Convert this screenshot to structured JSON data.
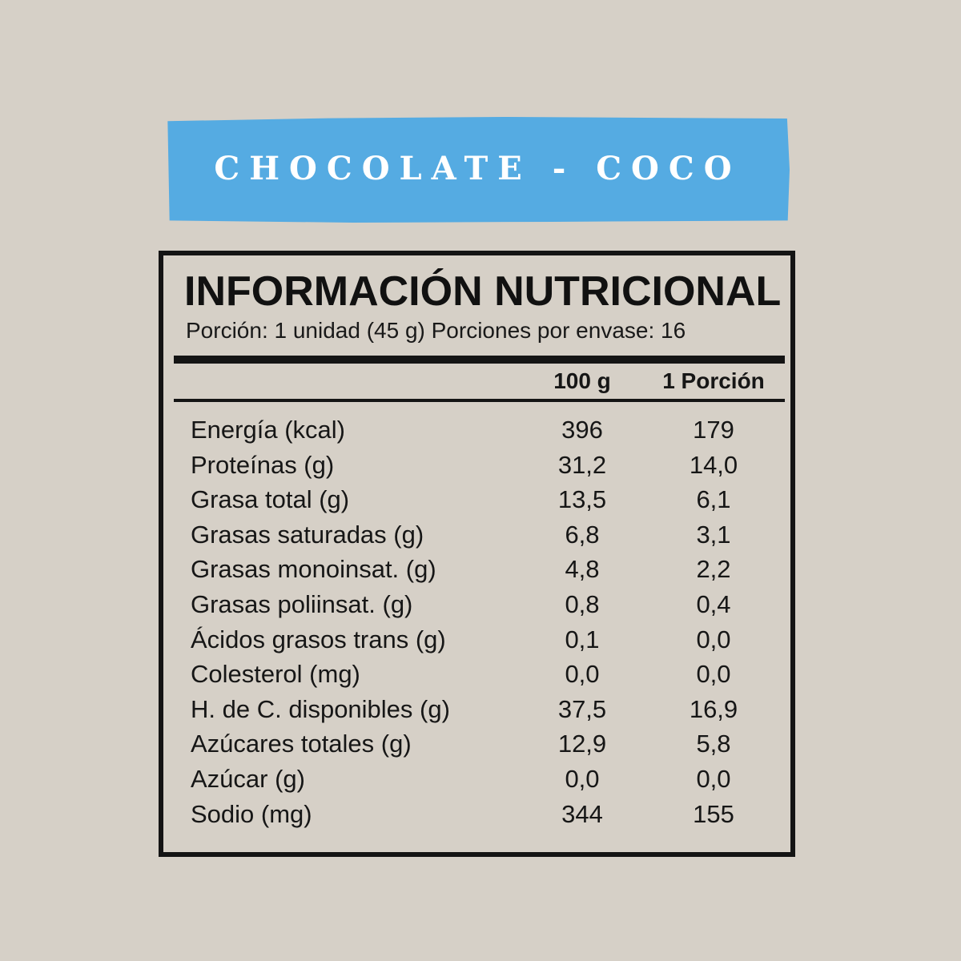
{
  "banner": {
    "title": "CHOCOLATE - COCO",
    "bg_color": "#55abe2",
    "text_color": "#ffffff"
  },
  "panel": {
    "title": "INFORMACIÓN NUTRICIONAL",
    "serving_line": "Porción: 1 unidad (45 g) Porciones por envase: 16",
    "columns": [
      "100 g",
      "1 Porción"
    ],
    "rows": [
      {
        "label": "Energía (kcal)",
        "per100": "396",
        "portion": "179"
      },
      {
        "label": "Proteínas (g)",
        "per100": "31,2",
        "portion": "14,0"
      },
      {
        "label": "Grasa total (g)",
        "per100": "13,5",
        "portion": "6,1"
      },
      {
        "label": "Grasas saturadas (g)",
        "per100": "6,8",
        "portion": "3,1"
      },
      {
        "label": "Grasas monoinsat. (g)",
        "per100": "4,8",
        "portion": "2,2"
      },
      {
        "label": "Grasas poliinsat. (g)",
        "per100": "0,8",
        "portion": "0,4"
      },
      {
        "label": "Ácidos grasos trans (g)",
        "per100": "0,1",
        "portion": "0,0"
      },
      {
        "label": "Colesterol (mg)",
        "per100": "0,0",
        "portion": "0,0"
      },
      {
        "label": "H. de C. disponibles (g)",
        "per100": "37,5",
        "portion": "16,9"
      },
      {
        "label": "Azúcares totales (g)",
        "per100": "12,9",
        "portion": "5,8"
      },
      {
        "label": "Azúcar (g)",
        "per100": "0,0",
        "portion": "0,0"
      },
      {
        "label": "Sodio (mg)",
        "per100": "344",
        "portion": "155"
      }
    ]
  },
  "colors": {
    "background": "#d6d0c7",
    "banner_blue": "#55abe2",
    "banner_text": "#ffffff",
    "panel_border": "#141414",
    "text": "#161616"
  }
}
